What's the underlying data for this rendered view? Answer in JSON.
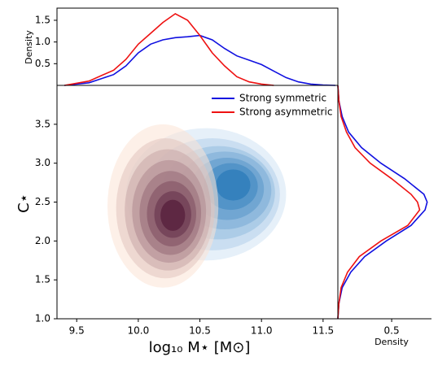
{
  "chart_data": {
    "type": "jointkde",
    "xlabel": "log₁₀ M⋆ [M⊙]",
    "ylabel": "C⋆",
    "xlim": [
      9.34,
      11.62
    ],
    "ylim": [
      1.0,
      4.0
    ],
    "xticks": [
      9.5,
      {
        "value": 10,
        "label": "10.0"
      },
      10.5,
      {
        "value": 11,
        "label": "11.0"
      },
      11.5
    ],
    "yticks": [
      {
        "value": 1,
        "label": "1.0"
      },
      1.5,
      {
        "value": 2,
        "label": "2.0"
      },
      2.5,
      {
        "value": 3,
        "label": "3.0"
      },
      3.5
    ],
    "legend": "upper right",
    "top": {
      "ylabel": "Density",
      "ylim": [
        0,
        1.78
      ],
      "yticks": [
        0.5,
        {
          "value": 1,
          "label": "1.0"
        },
        1.5
      ]
    },
    "right": {
      "xlabel": "Density",
      "xlim": [
        0,
        0.87
      ],
      "xticks": [
        0.5
      ]
    },
    "series": [
      {
        "name": "Strong symmetric",
        "color": "#1010e0",
        "cmap": [
          "#deebf7",
          "#2b7bba"
        ],
        "marginal_x": {
          "x": [
            9.4,
            9.6,
            9.8,
            9.9,
            10.0,
            10.1,
            10.2,
            10.3,
            10.4,
            10.5,
            10.6,
            10.7,
            10.8,
            10.9,
            11.0,
            11.1,
            11.2,
            11.3,
            11.4,
            11.5,
            11.6
          ],
          "density": [
            0.0,
            0.06,
            0.25,
            0.45,
            0.75,
            0.95,
            1.05,
            1.1,
            1.12,
            1.15,
            1.05,
            0.85,
            0.68,
            0.58,
            0.48,
            0.33,
            0.18,
            0.08,
            0.03,
            0.01,
            0.0
          ]
        },
        "marginal_y": {
          "y": [
            1.0,
            1.2,
            1.4,
            1.6,
            1.8,
            2.0,
            2.2,
            2.4,
            2.5,
            2.6,
            2.8,
            3.0,
            3.2,
            3.4,
            3.6,
            3.8,
            4.0
          ],
          "density": [
            0.0,
            0.01,
            0.04,
            0.12,
            0.25,
            0.45,
            0.68,
            0.81,
            0.83,
            0.8,
            0.62,
            0.4,
            0.22,
            0.1,
            0.04,
            0.01,
            0.0
          ]
        },
        "contours": [
          {
            "cx": 10.55,
            "cy": 2.6,
            "rx": 0.65,
            "ry": 0.85
          },
          {
            "cx": 10.6,
            "cy": 2.6,
            "rx": 0.55,
            "ry": 0.72
          },
          {
            "cx": 10.65,
            "cy": 2.62,
            "rx": 0.46,
            "ry": 0.6
          },
          {
            "cx": 10.7,
            "cy": 2.65,
            "rx": 0.38,
            "ry": 0.5
          },
          {
            "cx": 10.72,
            "cy": 2.67,
            "rx": 0.3,
            "ry": 0.4
          },
          {
            "cx": 10.75,
            "cy": 2.7,
            "rx": 0.22,
            "ry": 0.3
          },
          {
            "cx": 10.77,
            "cy": 2.72,
            "rx": 0.14,
            "ry": 0.2
          }
        ]
      },
      {
        "name": "Strong asymmetric",
        "color": "#ee1111",
        "cmap": [
          "#fbe3d6",
          "#4a1030"
        ],
        "marginal_x": {
          "x": [
            9.4,
            9.6,
            9.8,
            9.9,
            10.0,
            10.1,
            10.2,
            10.3,
            10.4,
            10.5,
            10.6,
            10.7,
            10.8,
            10.9,
            11.0,
            11.1
          ],
          "density": [
            0.0,
            0.1,
            0.35,
            0.6,
            0.95,
            1.2,
            1.45,
            1.65,
            1.5,
            1.15,
            0.75,
            0.45,
            0.2,
            0.08,
            0.03,
            0.0
          ]
        },
        "marginal_y": {
          "y": [
            1.0,
            1.2,
            1.4,
            1.6,
            1.8,
            2.0,
            2.2,
            2.4,
            2.5,
            2.6,
            2.8,
            3.0,
            3.2,
            3.4,
            3.6,
            3.8,
            4.0
          ],
          "density": [
            0.0,
            0.01,
            0.03,
            0.09,
            0.2,
            0.4,
            0.65,
            0.76,
            0.74,
            0.68,
            0.5,
            0.3,
            0.16,
            0.08,
            0.03,
            0.01,
            0.0
          ]
        },
        "contours": [
          {
            "cx": 10.2,
            "cy": 2.45,
            "rx": 0.45,
            "ry": 1.05
          },
          {
            "cx": 10.22,
            "cy": 2.42,
            "rx": 0.4,
            "ry": 0.9
          },
          {
            "cx": 10.24,
            "cy": 2.4,
            "rx": 0.35,
            "ry": 0.78
          },
          {
            "cx": 10.25,
            "cy": 2.38,
            "rx": 0.3,
            "ry": 0.66
          },
          {
            "cx": 10.26,
            "cy": 2.36,
            "rx": 0.25,
            "ry": 0.54
          },
          {
            "cx": 10.27,
            "cy": 2.35,
            "rx": 0.2,
            "ry": 0.42
          },
          {
            "cx": 10.28,
            "cy": 2.34,
            "rx": 0.15,
            "ry": 0.3
          },
          {
            "cx": 10.28,
            "cy": 2.33,
            "rx": 0.1,
            "ry": 0.2
          }
        ]
      }
    ]
  }
}
